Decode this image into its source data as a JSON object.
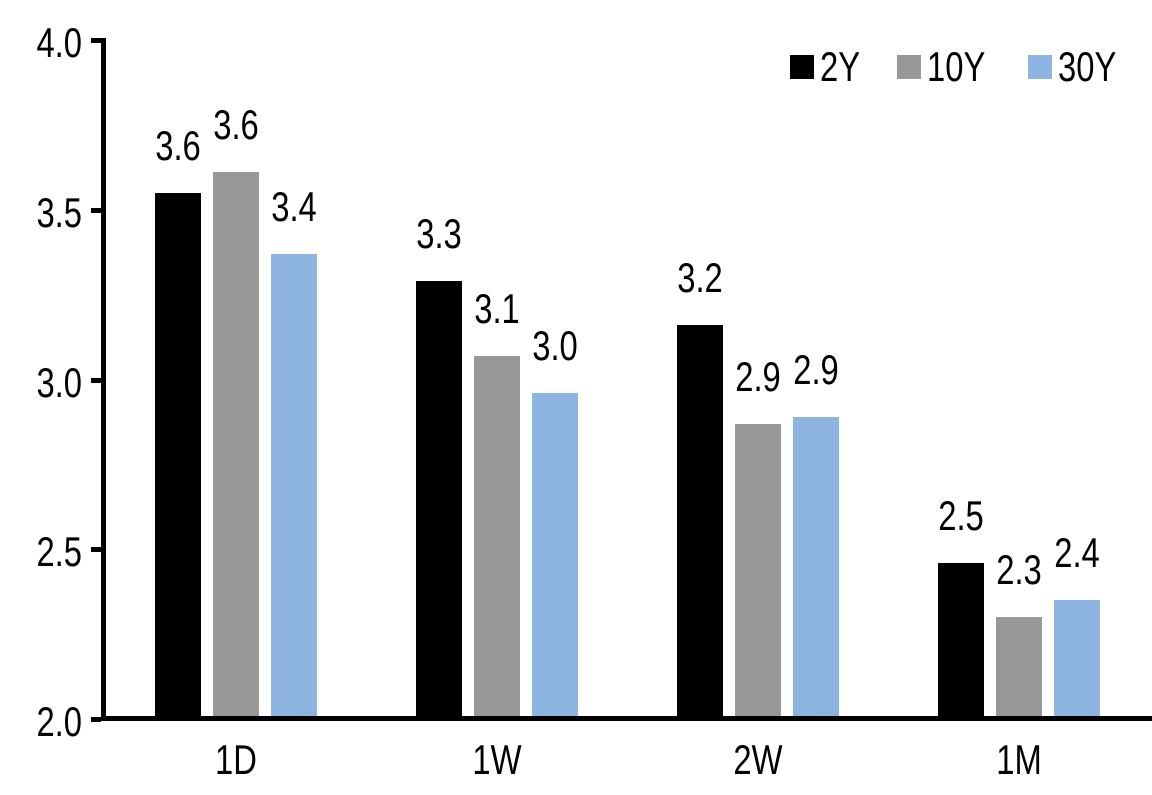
{
  "background_color": "#FFFFFF",
  "axis_color": "#000000",
  "chart_data": {
    "type": "bar",
    "title": "",
    "xlabel": "",
    "ylabel": "",
    "categories": [
      "1D",
      "1W",
      "2W",
      "1M"
    ],
    "series": [
      {
        "name": "2Y",
        "color": "#000000",
        "values": [
          3.55,
          3.29,
          3.16,
          2.46
        ],
        "labels": [
          "3.6",
          "3.3",
          "3.2",
          "2.5"
        ]
      },
      {
        "name": "10Y",
        "color": "#989898",
        "values": [
          3.61,
          3.07,
          2.87,
          2.3
        ],
        "labels": [
          "3.6",
          "3.1",
          "2.9",
          "2.3"
        ]
      },
      {
        "name": "30Y",
        "color": "#8EB4E2",
        "values": [
          3.37,
          2.96,
          2.89,
          2.35
        ],
        "labels": [
          "3.4",
          "3.0",
          "2.9",
          "2.4"
        ]
      }
    ],
    "ylim": [
      2.0,
      4.0
    ],
    "yticks": [
      "2.0",
      "2.5",
      "3.0",
      "3.5",
      "4.0"
    ],
    "grid": false,
    "data_labels": true,
    "legend_position": "top-right"
  }
}
